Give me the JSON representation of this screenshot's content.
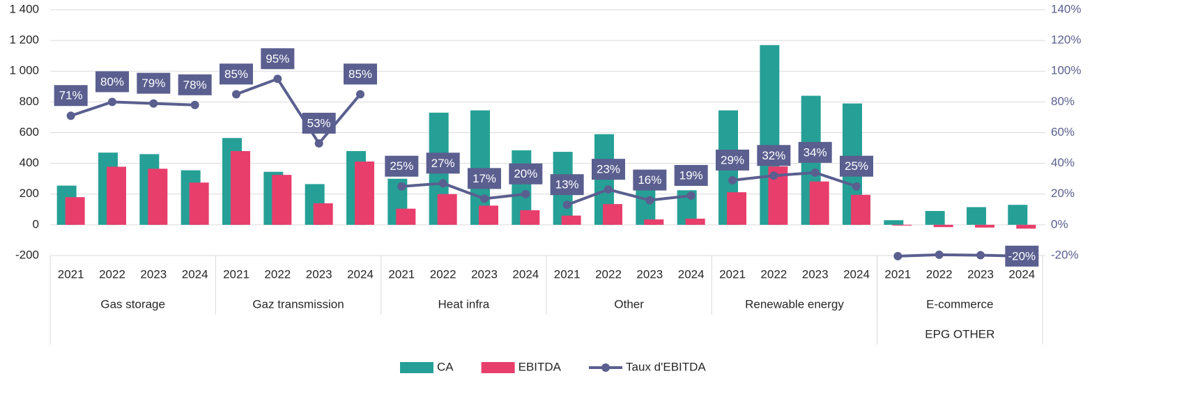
{
  "chart_data": {
    "type": "bar_line",
    "categories": [
      "2021",
      "2022",
      "2023",
      "2024",
      "2021",
      "2022",
      "2023",
      "2024",
      "2021",
      "2022",
      "2023",
      "2024",
      "2021",
      "2022",
      "2023",
      "2024",
      "2021",
      "2022",
      "2023",
      "2024",
      "2021",
      "2022",
      "2023",
      "2024"
    ],
    "category_groups": [
      "Gas storage",
      "Gaz transmission",
      "Heat infra",
      "Other",
      "Renewable energy",
      "E-commerce"
    ],
    "outer_groups": [
      null,
      null,
      null,
      null,
      null,
      "EPG OTHER"
    ],
    "series": [
      {
        "name": "CA",
        "type": "bar",
        "color": "#26a096",
        "values": [
          255,
          470,
          460,
          355,
          565,
          345,
          265,
          480,
          300,
          730,
          745,
          485,
          475,
          590,
          250,
          225,
          745,
          1170,
          840,
          790,
          30,
          90,
          115,
          130
        ]
      },
      {
        "name": "EBITDA",
        "type": "bar",
        "color": "#e83e6c",
        "values": [
          180,
          378,
          365,
          275,
          480,
          325,
          140,
          412,
          105,
          200,
          125,
          95,
          60,
          135,
          35,
          40,
          212,
          380,
          282,
          195,
          -5,
          -15,
          -18,
          -25
        ]
      },
      {
        "name": "Taux d'EBITDA",
        "type": "line",
        "axis": "y2",
        "color": "#5a5f8f",
        "values": [
          71,
          80,
          79,
          78,
          85,
          95,
          53,
          85,
          25,
          27,
          17,
          20,
          13,
          23,
          16,
          19,
          29,
          32,
          34,
          25,
          -20.4,
          -19.5,
          -19.8,
          -20.4
        ],
        "value_labels": [
          "71%",
          "80%",
          "79%",
          "78%",
          "85%",
          "95%",
          "53%",
          "85%",
          "25%",
          "27%",
          "17%",
          "20%",
          "13%",
          "23%",
          "16%",
          "19%",
          "29%",
          "32%",
          "34%",
          "25%",
          null,
          null,
          null,
          "-20%"
        ]
      }
    ],
    "ylim": [
      -200,
      1400
    ],
    "yticks": [
      -200,
      0,
      200,
      400,
      600,
      800,
      {
        "value": 1000,
        "label": "1 000"
      },
      {
        "value": 1200,
        "label": "1 200"
      },
      {
        "value": 1400,
        "label": "1 400"
      }
    ],
    "y2lim": [
      -20,
      140
    ],
    "y2ticks": [
      {
        "value": -20,
        "label": "-20%"
      },
      {
        "value": 0,
        "label": "0%"
      },
      {
        "value": 20,
        "label": "20%"
      },
      {
        "value": 40,
        "label": "40%"
      },
      {
        "value": 60,
        "label": "60%"
      },
      {
        "value": 80,
        "label": "80%"
      },
      {
        "value": 100,
        "label": "100%"
      },
      {
        "value": 120,
        "label": "120%"
      },
      {
        "value": 140,
        "label": "140%"
      }
    ],
    "grid": true,
    "legend": "bottom"
  }
}
